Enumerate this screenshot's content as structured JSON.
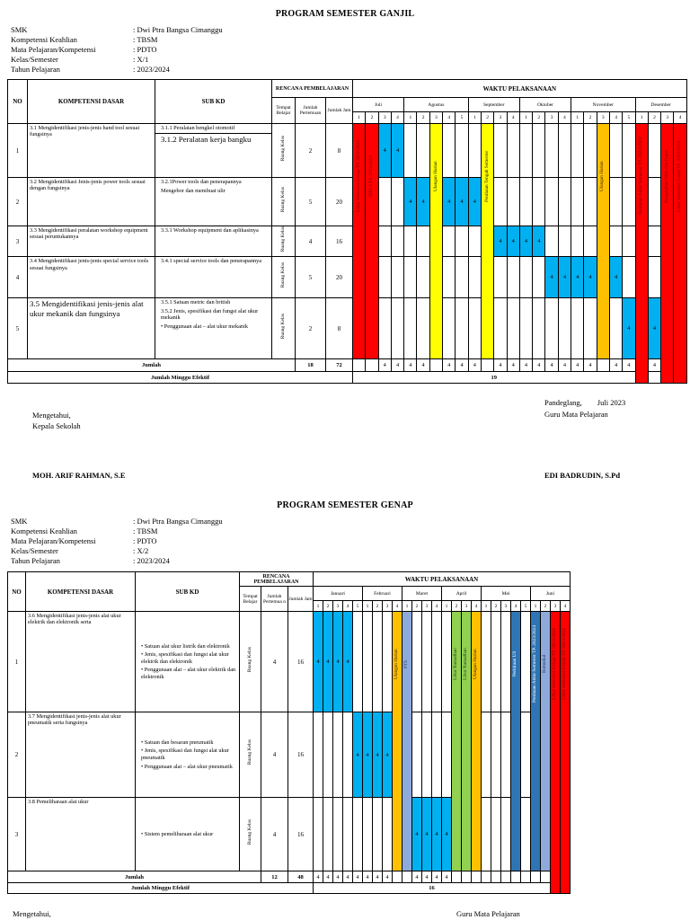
{
  "page1": {
    "title": "PROGRAM SEMESTER GANJIL",
    "meta": [
      {
        "label": "SMK",
        "value": ": Dwi Ptra Bangsa Cimanggu"
      },
      {
        "label": "Kompetensi Keahlian",
        "value": ": TBSM"
      },
      {
        "label": "Mata Pelajaran/Kompetensi",
        "value": ": PDTO"
      },
      {
        "label": "Kelas/Semester",
        "value": ": X/1"
      },
      {
        "label": "Tahun Pelajaran",
        "value": ": 2023/2024"
      }
    ],
    "table": {
      "headers": {
        "no": "NO",
        "kd": "KOMPETENSI DASAR",
        "subkd": "SUB KD",
        "rencana": "RENCANA PEMBELAJARAN",
        "tempat": "Tempat Belajar",
        "pertemuan": "Jumlah Pertemuan",
        "jam": "Jumlah Jam",
        "waktu": "WAKTU PELAKSANAAN"
      },
      "months": [
        {
          "name": "Juli",
          "weeks": [
            "1",
            "2",
            "3",
            "4"
          ]
        },
        {
          "name": "Agustus",
          "weeks": [
            "1",
            "2",
            "3",
            "4",
            "5"
          ]
        },
        {
          "name": "September",
          "weeks": [
            "1",
            "2",
            "3",
            "4"
          ]
        },
        {
          "name": "Oktober",
          "weeks": [
            "1",
            "2",
            "3",
            "4"
          ]
        },
        {
          "name": "November",
          "weeks": [
            "1",
            "2",
            "3",
            "4",
            "5"
          ]
        },
        {
          "name": "Desember",
          "weeks": [
            "1",
            "2",
            "3",
            "4"
          ]
        }
      ],
      "rows": [
        {
          "no": "1",
          "kd": "3.1 Mengidentifikasi jenis-jenis hand tool sesuai fungsinya",
          "subkd": [
            "3.1.1 Peralatan bengkel otomotif",
            "3.1.2 Peralatan kerja bangku"
          ],
          "tempat": "Ruang Kelas",
          "pertemuan": "2",
          "jam": "8",
          "cells": [
            {
              "col": 2,
              "v": "4"
            },
            {
              "col": 3,
              "v": "4"
            }
          ]
        },
        {
          "no": "2",
          "kd": "3.2 Mengidentifikasi Jenis-jenis power tools sesuai dengan fungsinya",
          "subkd": [
            "3.2.1Power tools dan penerapannya",
            "Mengebor dan membuat ulir"
          ],
          "tempat": "Ruang Kelas",
          "pertemuan": "5",
          "jam": "20",
          "cells": [
            {
              "col": 4,
              "v": "4"
            },
            {
              "col": 5,
              "v": "4"
            },
            {
              "col": 7,
              "v": "4"
            },
            {
              "col": 8,
              "v": "4"
            },
            {
              "col": 9,
              "v": "4"
            }
          ]
        },
        {
          "no": "3",
          "kd": "3.3 Mengidentifikasi peralatan workshop equipment sesuai peruntukannya",
          "subkd": [
            "3.3.1 Workshop equipment dan aplikasinya"
          ],
          "tempat": "Ruang Kelas",
          "pertemuan": "4",
          "jam": "16",
          "cells": [
            {
              "col": 11,
              "v": "4"
            },
            {
              "col": 12,
              "v": "4"
            },
            {
              "col": 13,
              "v": "4"
            },
            {
              "col": 14,
              "v": "4"
            }
          ]
        },
        {
          "no": "4",
          "kd": "3.4  Mengidentifikasi jenis-jenis special service tools sesuai fungsinya",
          "subkd": [
            "3.4.1 special service tools dan penerapannya"
          ],
          "tempat": "Ruang Kelas",
          "pertemuan": "5",
          "jam": "20",
          "cells": [
            {
              "col": 15,
              "v": "4"
            },
            {
              "col": 16,
              "v": "4"
            },
            {
              "col": 17,
              "v": "4"
            },
            {
              "col": 18,
              "v": "4"
            },
            {
              "col": 20,
              "v": "4"
            }
          ]
        },
        {
          "no": "5",
          "kd": "3.5 Mengidentifikasi jenis-jenis alat ukur mekanik dan fungsinya",
          "subkd": [
            "3.5.1 Satuan metric dan british",
            "3.5.2 Jenis, spesifikasi dan fungsi alat ukur mekanik",
            "• Penggunaan alat – alat ukur mekanik"
          ],
          "tempat": "Ruang Kelas",
          "pertemuan": "2",
          "jam": "8",
          "cells": [
            {
              "col": 21,
              "v": "4"
            },
            {
              "col": 23,
              "v": "4"
            }
          ]
        }
      ],
      "bands": [
        {
          "col": 0,
          "bg": "#ff0000",
          "fg": "#7f0000",
          "text": "Libur Semester Genap TP. 2022/2023",
          "extend": false
        },
        {
          "col": 1,
          "bg": "#ff0000",
          "fg": "#7f0000",
          "text": "MPLS TP. 2023/2024",
          "extend": false
        },
        {
          "col": 6,
          "bg": "#ffff00",
          "fg": "#1a1a00",
          "text": "Ulangan Harian",
          "extend": false
        },
        {
          "col": 10,
          "bg": "#ffff00",
          "fg": "#1a1a00",
          "text": "Penilaian Tengah Semester",
          "extend": false
        },
        {
          "col": 19,
          "bg": "#ffc000",
          "fg": "#3d2b00",
          "text": "Ulangan Harian",
          "extend": false
        },
        {
          "col": 22,
          "bg": "#ff0000",
          "fg": "#7f0000",
          "text": "Penilaian Akhir Semester TP. 2023/2024",
          "extend": true
        },
        {
          "col": 24,
          "bg": "#ff0000",
          "fg": "#7f0000",
          "text": "Pengolahan Nilai dan Rapot",
          "extend": true
        },
        {
          "col": 25,
          "bg": "#ff0000",
          "fg": "#7f0000",
          "text": "Libur Semester Ganjil TP. 2023/2024",
          "extend": true
        }
      ],
      "jumlah": {
        "label": "Jumlah",
        "pertemuan": "18",
        "jam": "72",
        "value": "4",
        "cols": [
          2,
          3,
          4,
          5,
          7,
          8,
          9,
          11,
          12,
          13,
          14,
          15,
          16,
          17,
          18,
          20,
          21,
          23
        ]
      },
      "efektif": {
        "label": "Jumlah Minggu Efektif",
        "value": "19"
      }
    },
    "signoff": {
      "place_date": "Pandeglang,        Juli 2023",
      "left_top": "Mengetahui,",
      "left_role": "Kepala Sekolah",
      "right_role": "Guru Mata Pelajaran",
      "left_name": "MOH. ARIF RAHMAN, S.E",
      "right_name": "EDI BADRUDIN, S.Pd"
    }
  },
  "page2": {
    "title": "PROGRAM SEMESTER GENAP",
    "meta": [
      {
        "label": "SMK",
        "value": ": Dwi Ptra Bangsa Cimanggu"
      },
      {
        "label": "Kompetensi Keahlian",
        "value": ": TBSM"
      },
      {
        "label": "Mata Pelajaran/Kompetensi",
        "value": ": PDTO"
      },
      {
        "label": "Kelas/Semester",
        "value": ": X/2"
      },
      {
        "label": "Tahun Pelajaran",
        "value": ": 2023/2024"
      }
    ],
    "table": {
      "headers": {
        "no": "NO",
        "kd": "KOMPETENSI DASAR",
        "subkd": "SUB KD",
        "rencana": "RENCANA PEMBELAJARAN",
        "tempat": "Tempat Belajar",
        "pertemuan": "Jumlah Pertemua n",
        "jam": "Jumlah Jam",
        "waktu": "WAKTU PELAKSANAAN"
      },
      "months": [
        {
          "name": "Januari",
          "weeks": [
            "1",
            "2",
            "3",
            "4",
            "5"
          ]
        },
        {
          "name": "Februari",
          "weeks": [
            "1",
            "2",
            "3",
            "4"
          ]
        },
        {
          "name": "Maret",
          "weeks": [
            "1",
            "2",
            "3",
            "4"
          ]
        },
        {
          "name": "April",
          "weeks": [
            "1",
            "2",
            "3",
            "4"
          ]
        },
        {
          "name": "Mei",
          "weeks": [
            "1",
            "2",
            "3",
            "4",
            "5"
          ]
        },
        {
          "name": "Juni",
          "weeks": [
            "1",
            "2",
            "3",
            "4"
          ]
        }
      ],
      "rows": [
        {
          "no": "1",
          "kd": "3.6  Mengidentifikasi jenis-jenis alat ukur elektrik dan elektronik serta",
          "subkd": [
            "• Satuan alat ukur listrik dan elektronik",
            "• Jenis, spesifikasi dan fungsi alat ukur elektrik dan elektronik",
            "• Penggunaan alat – alat ukur elektrik dan elektronik"
          ],
          "tempat": "Ruang Kelas",
          "pertemuan": "4",
          "jam": "16",
          "cells": [
            {
              "col": 0,
              "v": "4"
            },
            {
              "col": 1,
              "v": "4"
            },
            {
              "col": 2,
              "v": "4"
            },
            {
              "col": 3,
              "v": "4"
            }
          ]
        },
        {
          "no": "2",
          "kd": "3.7 Mengidentifikasi jenis-jenis alat ukur pneumatik serta fungsinya",
          "subkd": [
            "• Satuan dan besaran pneumatik",
            "• Jenis, spesifikasi dan fungsi alat ukur pneumatik",
            "• Penggunaan alat – alat ukur pneumatik"
          ],
          "tempat": "Ruang Kelas",
          "pertemuan": "4",
          "jam": "16",
          "cells": [
            {
              "col": 4,
              "v": "4"
            },
            {
              "col": 5,
              "v": "4"
            },
            {
              "col": 6,
              "v": "4"
            },
            {
              "col": 7,
              "v": "4"
            }
          ]
        },
        {
          "no": "3",
          "kd": "3.8 Pemeliharaan alat ukur",
          "subkd": [
            "• Sistem pemeliharaan alat ukur"
          ],
          "tempat": "Ruang Kelas",
          "pertemuan": "4",
          "jam": "16",
          "cells": [
            {
              "col": 10,
              "v": "4"
            },
            {
              "col": 11,
              "v": "4"
            },
            {
              "col": 12,
              "v": "4"
            },
            {
              "col": 13,
              "v": "4"
            }
          ]
        }
      ],
      "bands": [
        {
          "col": 8,
          "bg": "#ffc000",
          "fg": "#3d2b00",
          "text": "Ulangan Harian",
          "extend": false
        },
        {
          "col": 9,
          "bg": "#8eaadb",
          "fg": "#1f3864",
          "text": "PTS",
          "extend": false
        },
        {
          "col": 14,
          "bg": "#92d050",
          "fg": "#1e4620",
          "text": "Libur Ramadhan",
          "extend": false
        },
        {
          "col": 15,
          "bg": "#92d050",
          "fg": "#1e4620",
          "text": "Libur Ramadhan",
          "extend": false
        },
        {
          "col": 16,
          "bg": "#ffc000",
          "fg": "#3d2b00",
          "text": "Ulangan Harian",
          "extend": false
        },
        {
          "col": 20,
          "bg": "#2e75b6",
          "fg": "#ffffff",
          "text": "Perkiraan US",
          "extend": false
        },
        {
          "col": 22,
          "bg": "#2e75b6",
          "fg": "#ffffff",
          "text": "Penilaian Akhir Semester TP. 2023/2024",
          "extend": false
        },
        {
          "col": 23,
          "bg": "#8eaadb",
          "fg": "#1f3864",
          "text": "Remedial",
          "extend": false
        },
        {
          "col": 24,
          "bg": "#ff0000",
          "fg": "#7f0000",
          "text": "Libur Semester Genap TP. 2023/2024",
          "extend": true
        },
        {
          "col": 25,
          "bg": "#ff0000",
          "fg": "#7f0000",
          "text": "Libur Semester Genap TP. 2023/2024",
          "extend": true
        }
      ],
      "jumlah": {
        "label": "Jumlah",
        "pertemuan": "12",
        "jam": "48",
        "value": "4",
        "cols": [
          0,
          1,
          2,
          3,
          4,
          5,
          6,
          7,
          10,
          11,
          12,
          13
        ]
      },
      "efektif": {
        "label": "Jumlah Minggu Efektif",
        "value": "16"
      }
    },
    "signoff": {
      "left_top": "Mengetahui,",
      "right_role": "Guru Mata Pelajaran"
    }
  }
}
